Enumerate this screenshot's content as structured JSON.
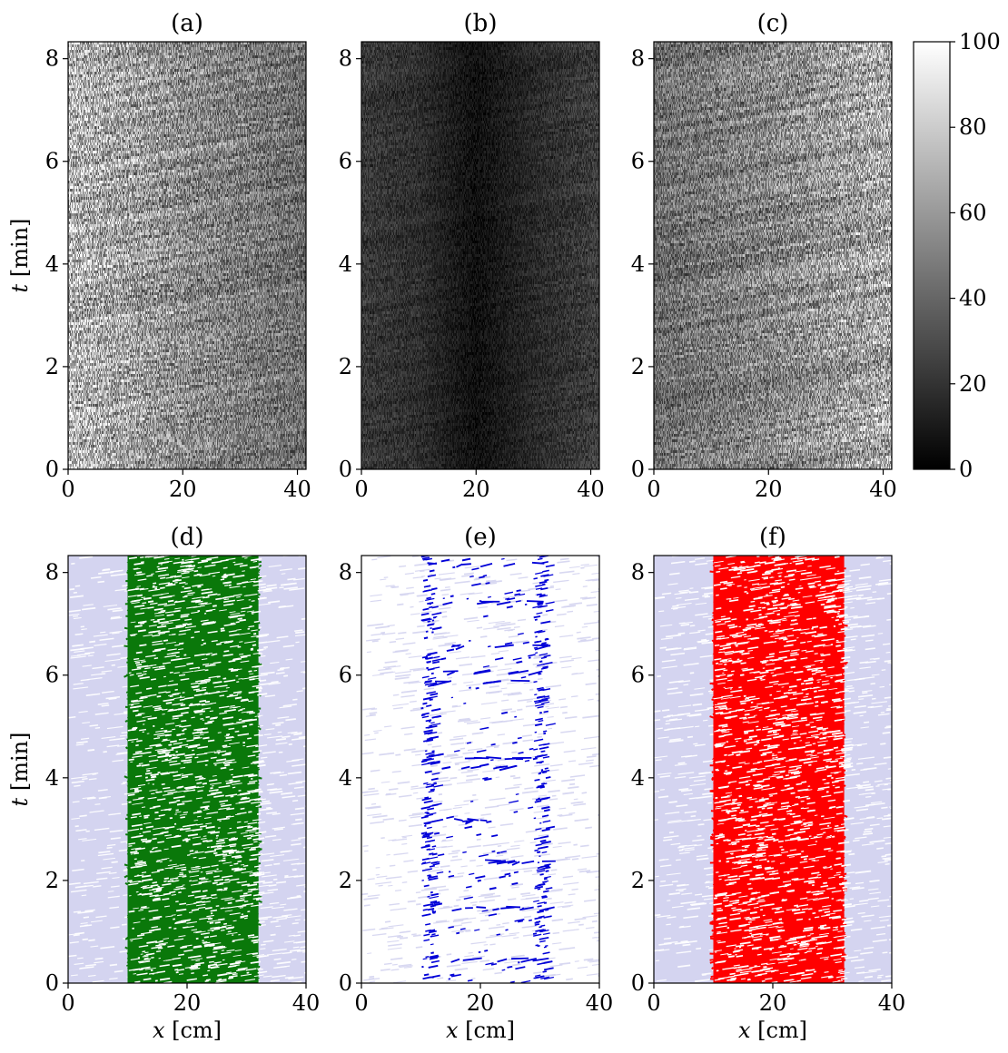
{
  "figure": {
    "colorbar": {
      "range": [
        0,
        100
      ],
      "ticks": [
        0,
        20,
        40,
        60,
        80,
        100
      ],
      "colormap": [
        "#000000",
        "#ffffff"
      ]
    },
    "colors": {
      "background_texture": "#d4d4f0",
      "green_band": "#0a780a",
      "blue_marks": "#0000d8",
      "red_band": "#ff0000"
    }
  },
  "chart_data": [
    {
      "type": "heatmap",
      "panel_label": "(a)",
      "mode": "gray",
      "xlabel": "",
      "ylabel": "t [min]",
      "xlim": [
        0,
        41.5
      ],
      "ylim": [
        0,
        8.33
      ],
      "xticks": [
        0,
        20,
        40
      ],
      "yticks": [
        0,
        2,
        4,
        6,
        8
      ],
      "brightness_profile": [
        [
          0,
          0.72
        ],
        [
          20,
          0.55
        ],
        [
          41.5,
          0.42
        ]
      ]
    },
    {
      "type": "heatmap",
      "panel_label": "(b)",
      "mode": "gray",
      "xlabel": "",
      "ylabel": "",
      "xlim": [
        0,
        41.5
      ],
      "ylim": [
        0,
        8.33
      ],
      "xticks": [
        0,
        20,
        40
      ],
      "yticks": [
        0,
        2,
        4,
        6,
        8
      ],
      "brightness_profile": [
        [
          0,
          0.22
        ],
        [
          10,
          0.18
        ],
        [
          20,
          0.06
        ],
        [
          30,
          0.16
        ],
        [
          41.5,
          0.24
        ]
      ]
    },
    {
      "type": "heatmap",
      "panel_label": "(c)",
      "mode": "gray",
      "xlabel": "",
      "ylabel": "",
      "xlim": [
        0,
        41.5
      ],
      "ylim": [
        0,
        8.33
      ],
      "xticks": [
        0,
        20,
        40
      ],
      "yticks": [
        0,
        2,
        4,
        6,
        8
      ],
      "brightness_profile": [
        [
          0,
          0.42
        ],
        [
          20,
          0.52
        ],
        [
          41.5,
          0.66
        ]
      ]
    },
    {
      "type": "heatmap",
      "panel_label": "(d)",
      "mode": "band",
      "xlabel": "x [cm]",
      "ylabel": "t [min]",
      "xlim": [
        0,
        40
      ],
      "ylim": [
        0,
        8.33
      ],
      "xticks": [
        0,
        20,
        40
      ],
      "yticks": [
        0,
        2,
        4,
        6,
        8
      ],
      "band": [
        10,
        32
      ],
      "band_color": "#0a780a"
    },
    {
      "type": "heatmap",
      "panel_label": "(e)",
      "mode": "sparse",
      "xlabel": "x [cm]",
      "ylabel": "",
      "xlim": [
        0,
        40
      ],
      "ylim": [
        0,
        8.33
      ],
      "xticks": [
        0,
        20,
        40
      ],
      "yticks": [
        0,
        2,
        4,
        6,
        8
      ],
      "band": [
        10,
        31
      ],
      "band_color": "#0000d8"
    },
    {
      "type": "heatmap",
      "panel_label": "(f)",
      "mode": "band",
      "xlabel": "x [cm]",
      "ylabel": "",
      "xlim": [
        0,
        40
      ],
      "ylim": [
        0,
        8.33
      ],
      "xticks": [
        0,
        20,
        40
      ],
      "yticks": [
        0,
        2,
        4,
        6,
        8
      ],
      "band": [
        10,
        32
      ],
      "band_color": "#ff0000"
    }
  ]
}
